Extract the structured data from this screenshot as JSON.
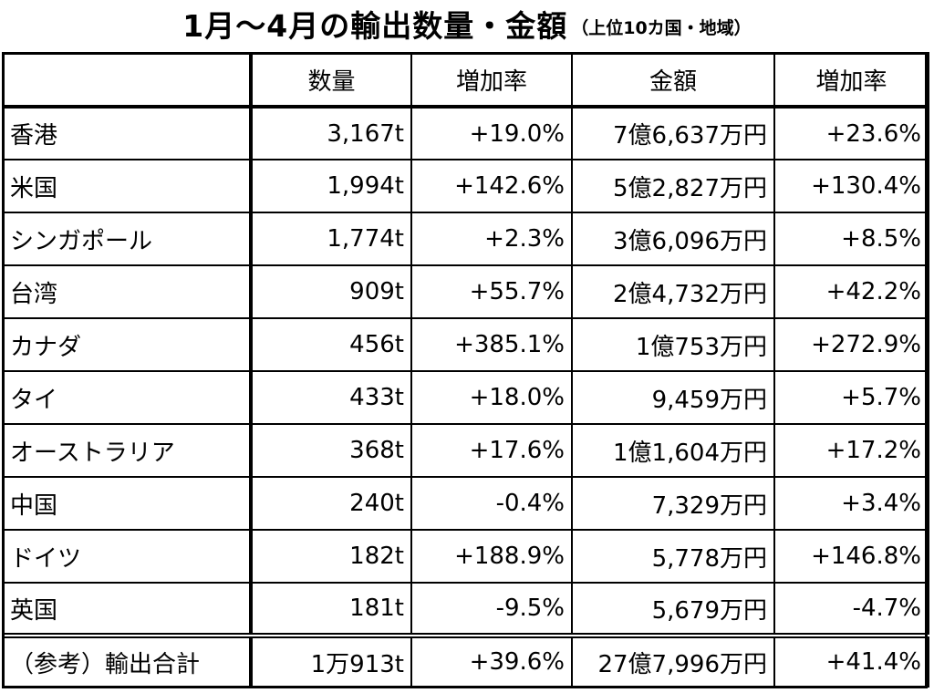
{
  "title": "1月～4月の輸出数量・金額",
  "subtitle": "（上位10カ国・地域）",
  "columns": [
    "",
    "数量",
    "増加率",
    "金額",
    "増加率"
  ],
  "rows": [
    {
      "country": "香港",
      "volume": "3,167t",
      "volume_growth": "+19.0%",
      "amount": "7億6,637万円",
      "amount_growth": "+23.6%"
    },
    {
      "country": "米国",
      "volume": "1,994t",
      "volume_growth": "+142.6%",
      "amount": "5億2,827万円",
      "amount_growth": "+130.4%"
    },
    {
      "country": "シンガポール",
      "volume": "1,774t",
      "volume_growth": "+2.3%",
      "amount": "3億6,096万円",
      "amount_growth": "+8.5%"
    },
    {
      "country": "台湾",
      "volume": "909t",
      "volume_growth": "+55.7%",
      "amount": "2億4,732万円",
      "amount_growth": "+42.2%"
    },
    {
      "country": "カナダ",
      "volume": "456t",
      "volume_growth": "+385.1%",
      "amount": "1億753万円",
      "amount_growth": "+272.9%"
    },
    {
      "country": "タイ",
      "volume": "433t",
      "volume_growth": "+18.0%",
      "amount": "9,459万円",
      "amount_growth": "+5.7%"
    },
    {
      "country": "オーストラリア",
      "volume": "368t",
      "volume_growth": "+17.6%",
      "amount": "1億1,604万円",
      "amount_growth": "+17.2%"
    },
    {
      "country": "中国",
      "volume": "240t",
      "volume_growth": "-0.4%",
      "amount": "7,329万円",
      "amount_growth": "+3.4%"
    },
    {
      "country": "ドイツ",
      "volume": "182t",
      "volume_growth": "+188.9%",
      "amount": "5,778万円",
      "amount_growth": "+146.8%"
    },
    {
      "country": "英国",
      "volume": "181t",
      "volume_growth": "-9.5%",
      "amount": "5,679万円",
      "amount_growth": "-4.7%"
    }
  ],
  "total": {
    "label": "（参考）輸出合計",
    "volume": "1万913t",
    "volume_growth": "+39.6%",
    "amount": "27億7,996万円",
    "amount_growth": "+41.4%"
  }
}
